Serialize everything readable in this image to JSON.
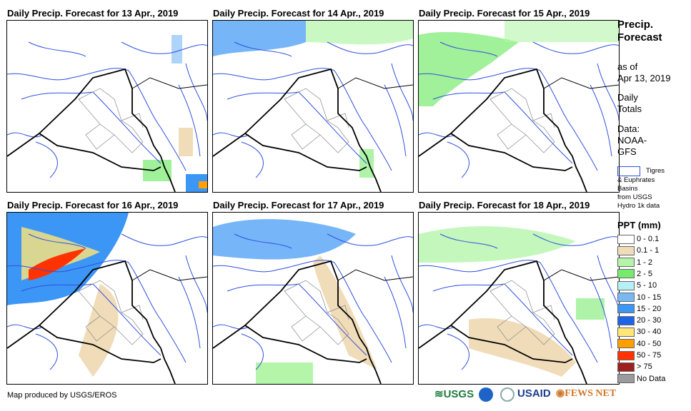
{
  "panels": [
    {
      "title": "Daily Precip. Forecast for 13 Apr., 2019"
    },
    {
      "title": "Daily Precip. Forecast for 14 Apr., 2019"
    },
    {
      "title": "Daily Precip. Forecast for 15 Apr., 2019"
    },
    {
      "title": "Daily Precip. Forecast for 16 Apr., 2019"
    },
    {
      "title": "Daily Precip. Forecast for 17 Apr., 2019"
    },
    {
      "title": "Daily Precip. Forecast for 18 Apr., 2019"
    }
  ],
  "sidebar": {
    "title1": "Precip.",
    "title2": "Forecast",
    "asof1": "as of",
    "asof2": "Apr 13, 2019",
    "daily1": "Daily",
    "daily2": "Totals",
    "data1": "Data:",
    "data2": "NOAA-",
    "data3": "GFS",
    "basin_label1": "Tigres",
    "basin_label2": "& Euphrates",
    "basin_label3": "Basins",
    "basin_label4": "from USGS",
    "basin_label5": "Hydro 1k data"
  },
  "legend": {
    "title": "PPT (mm)",
    "items": [
      {
        "label": "0 - 0.1",
        "color": "#ffffff"
      },
      {
        "label": "0.1 - 1",
        "color": "#f0dcb8"
      },
      {
        "label": "1 - 2",
        "color": "#b4f5aa"
      },
      {
        "label": "2 - 5",
        "color": "#78eb6e"
      },
      {
        "label": "5 - 10",
        "color": "#b4f0f5"
      },
      {
        "label": "10 - 15",
        "color": "#78b9f5"
      },
      {
        "label": "15 - 20",
        "color": "#3c96f5"
      },
      {
        "label": "20 - 30",
        "color": "#1e64e6"
      },
      {
        "label": "30 - 40",
        "color": "#ffe678"
      },
      {
        "label": "40 - 50",
        "color": "#ffa000"
      },
      {
        "label": "50 - 75",
        "color": "#ff3200"
      },
      {
        "label": "> 75",
        "color": "#a01e1e"
      },
      {
        "label": "No Data",
        "color": "#9b9b9b"
      }
    ]
  },
  "footer": {
    "credit": "Map produced by USGS/EROS",
    "logos": [
      "USGS",
      "NOAA",
      "USAID",
      "FEWS NET"
    ]
  }
}
